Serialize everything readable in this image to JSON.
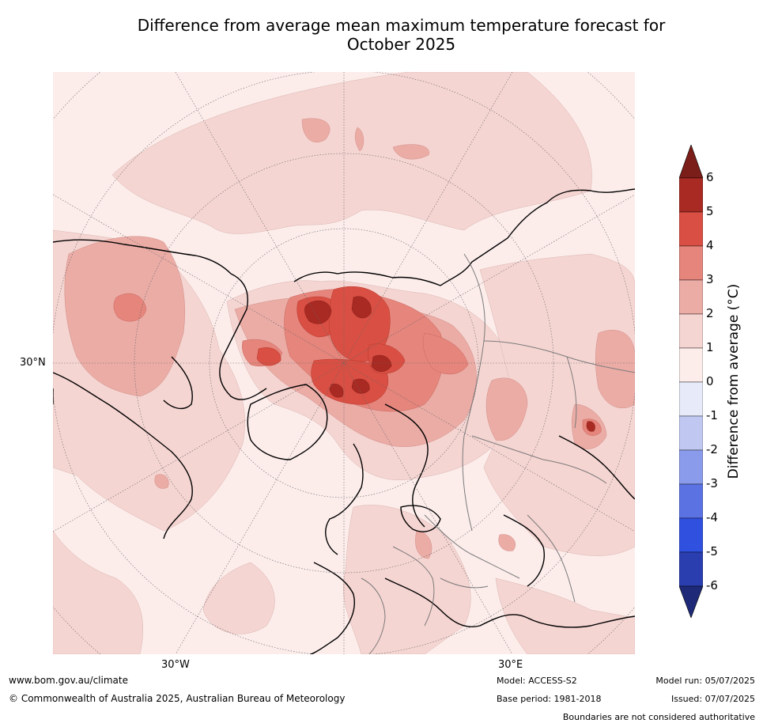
{
  "title_line1": "Difference from average mean maximum temperature forecast for",
  "title_line2": "October 2025",
  "axis_labels": {
    "lat": "30°N",
    "lon_west": "30°W",
    "lon_east": "30°E"
  },
  "colorbar": {
    "label": "Difference from average (°C)",
    "ticks": [
      "6",
      "5",
      "4",
      "3",
      "2",
      "1",
      "0",
      "-1",
      "-2",
      "-3",
      "-4",
      "-5",
      "-6"
    ],
    "colors": {
      "gt6": "#7b1d18",
      "5to6": "#a82a23",
      "4to5": "#d94f43",
      "3to4": "#e5857c",
      "2to3": "#ebaca6",
      "1to2": "#f5d5d2",
      "0to1": "#fcedeb",
      "m1to0": "#e6eaf9",
      "m2tom1": "#c0c8f2",
      "m3tom2": "#8b9bec",
      "m4tom3": "#5b72e3",
      "m5tom4": "#3050df",
      "m6tom5": "#2a3eb0",
      "ltm6": "#1e2a78"
    }
  },
  "footer": {
    "website": "www.bom.gov.au/climate",
    "copyright": "© Commonwealth of Australia 2025, Australian Bureau of Meteorology",
    "model": "Model: ACCESS-S2",
    "base_period": "Base period: 1981-2018",
    "model_run": "Model run: 05/07/2025",
    "issued": "Issued: 07/07/2025",
    "disclaimer": "Boundaries are not considered authoritative"
  }
}
